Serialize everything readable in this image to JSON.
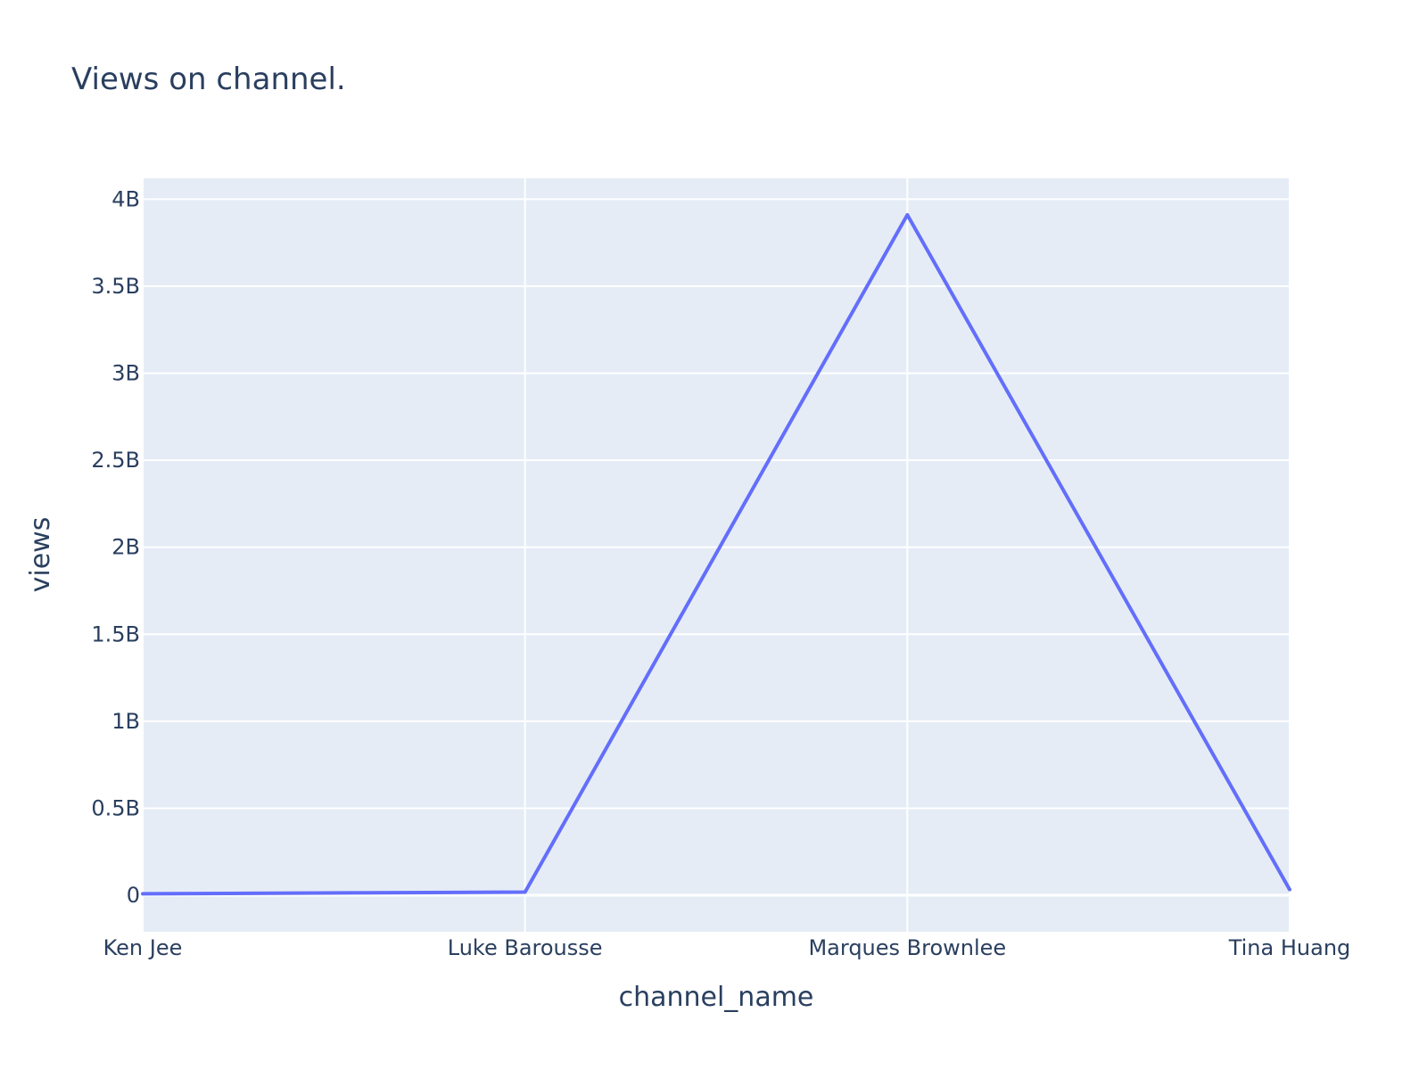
{
  "chart_data": {
    "type": "line",
    "title": "Views on channel.",
    "xlabel": "channel_name",
    "ylabel": "views",
    "categories": [
      "Ken Jee",
      "Luke Barousse",
      "Marques Brownlee",
      "Tina Huang"
    ],
    "series": [
      {
        "values": [
          8500000,
          18000000,
          3910000000,
          33000000
        ]
      }
    ],
    "ylim": [
      -210000000,
      4120000000
    ],
    "y_ticks": [
      0,
      500000000,
      1000000000,
      1500000000,
      2000000000,
      2500000000,
      3000000000,
      3500000000,
      4000000000
    ],
    "y_tick_labels": [
      "0",
      "0.5B",
      "1B",
      "1.5B",
      "2B",
      "2.5B",
      "3B",
      "3.5B",
      "4B"
    ],
    "grid": true,
    "colors": {
      "line": "#636efa",
      "plot_bg": "#e5ecf6",
      "grid": "#ffffff",
      "text": "#2a3f5f"
    }
  }
}
